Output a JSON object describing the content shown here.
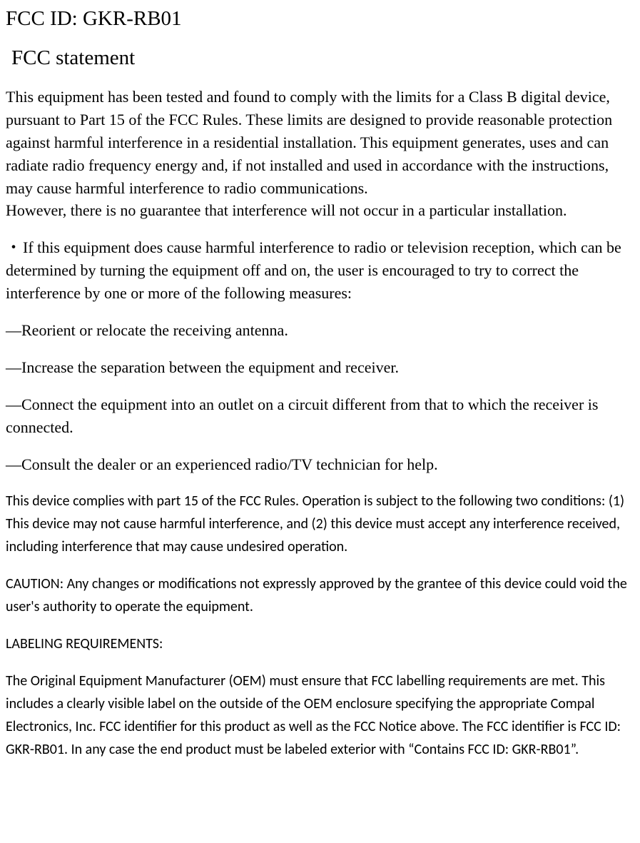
{
  "doc": {
    "fcc_id_line": "FCC ID: GKR-RB01",
    "statement_title": "FCC statement",
    "para1": "This equipment has been tested and found to comply with the limits for a Class B digital device, pursuant to Part 15 of the FCC Rules. These limits are designed to provide reasonable protection against harmful interference in a residential installation. This equipment generates, uses and can radiate radio frequency energy and, if not installed and used in accordance with the instructions, may cause harmful interference to radio communications.",
    "para1b": "However, there is no guarantee that interference will not occur in a particular installation.",
    "bullet_prefix": "・",
    "bullet_text": "If this equipment does cause harmful interference to radio or television reception, which can be determined by turning the equipment off and on, the user is encouraged to try to correct the interference by one or more of the following measures:",
    "dash_prefix": "—",
    "measure1": "Reorient or relocate the receiving antenna.",
    "measure2": "Increase the separation between the equipment and receiver.",
    "measure3": "Connect the equipment into an outlet on a circuit different from that to which the receiver is connected.",
    "measure4": "Consult the dealer or an experienced radio/TV technician for help.",
    "compliance": "This device complies with part 15 of the FCC Rules. Operation is subject to the following two conditions: (1) This device may not cause harmful interference, and (2) this device must accept any interference received, including interference that may cause undesired operation.",
    "caution": "CAUTION: Any changes or modifications not expressly approved by the grantee of this device could void the user's authority to operate the equipment.",
    "labeling_title": "LABELING REQUIREMENTS:",
    "labeling_body": "The Original Equipment Manufacturer (OEM) must ensure that FCC labelling requirements are met. This includes a clearly visible label on the outside of the OEM enclosure specifying the appropriate Compal Electronics, Inc. FCC identifier for this product as well as the FCC Notice above. The FCC identifier is FCC ID: GKR-RB01. In any case the end product must be labeled exterior with “Contains FCC ID: GKR-RB01”."
  },
  "style": {
    "background": "#ffffff",
    "text_color": "#000000",
    "serif_font": "Times New Roman",
    "sans_font": "Calibri",
    "title_fontsize": 29,
    "body_serif_fontsize": 22,
    "body_sans_fontsize": 20
  }
}
